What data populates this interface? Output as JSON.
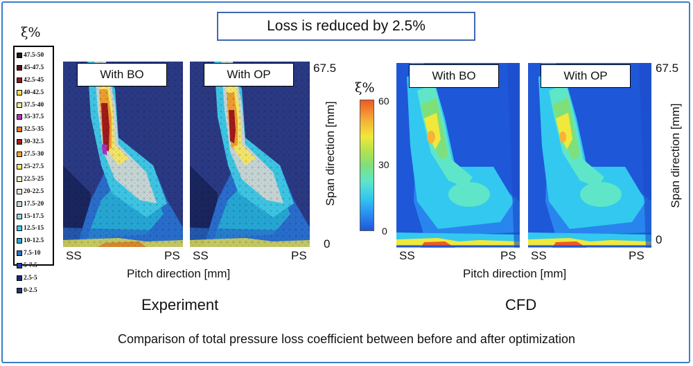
{
  "title": "Loss is reduced by 2.5%",
  "legend": {
    "symbol": "ξ%",
    "items": [
      {
        "label": "47.5-50",
        "color": "#1a1a1a"
      },
      {
        "label": "45-47.5",
        "color": "#5a0d0d"
      },
      {
        "label": "42.5-45",
        "color": "#8e1a1a"
      },
      {
        "label": "40-42.5",
        "color": "#f0e24a"
      },
      {
        "label": "37.5-40",
        "color": "#f4e79a"
      },
      {
        "label": "35-37.5",
        "color": "#b52fc0"
      },
      {
        "label": "32.5-35",
        "color": "#e07a22"
      },
      {
        "label": "30-32.5",
        "color": "#a31b1b"
      },
      {
        "label": "27.5-30",
        "color": "#f0a030"
      },
      {
        "label": "25-27.5",
        "color": "#f7e96a"
      },
      {
        "label": "22.5-25",
        "color": "#f6f0c0"
      },
      {
        "label": "20-22.5",
        "color": "#e8e8d8"
      },
      {
        "label": "17.5-20",
        "color": "#c9d8d8"
      },
      {
        "label": "15-17.5",
        "color": "#8fd6e6"
      },
      {
        "label": "12.5-15",
        "color": "#3ec9e8"
      },
      {
        "label": "10-12.5",
        "color": "#27a9d8"
      },
      {
        "label": "7.5-10",
        "color": "#2a6fd0"
      },
      {
        "label": "5-7.5",
        "color": "#1f3fa8"
      },
      {
        "label": "2.5-5",
        "color": "#1a2a80"
      },
      {
        "label": "0-2.5",
        "color": "#2a3470"
      }
    ]
  },
  "experiment": {
    "panel_bo": "With BO",
    "panel_op": "With OP",
    "ss": "SS",
    "ps": "PS",
    "span_top": "67.5",
    "span_bottom": "0",
    "span_label": "Span direction [mm]",
    "pitch_label": "Pitch direction [mm]",
    "caption": "Experiment"
  },
  "cfd": {
    "panel_bo": "With BO",
    "panel_op": "With OP",
    "ss": "SS",
    "ps": "PS",
    "span_top": "67.5",
    "span_bottom": "0",
    "span_label": "Span direction [mm]",
    "pitch_label": "Pitch direction [mm]",
    "caption": "CFD",
    "colorbar": {
      "symbol": "ξ%",
      "ticks": [
        "60",
        "30",
        "0"
      ]
    }
  },
  "bottom_caption": "Comparison of total pressure loss coefficient between before and after optimization"
}
